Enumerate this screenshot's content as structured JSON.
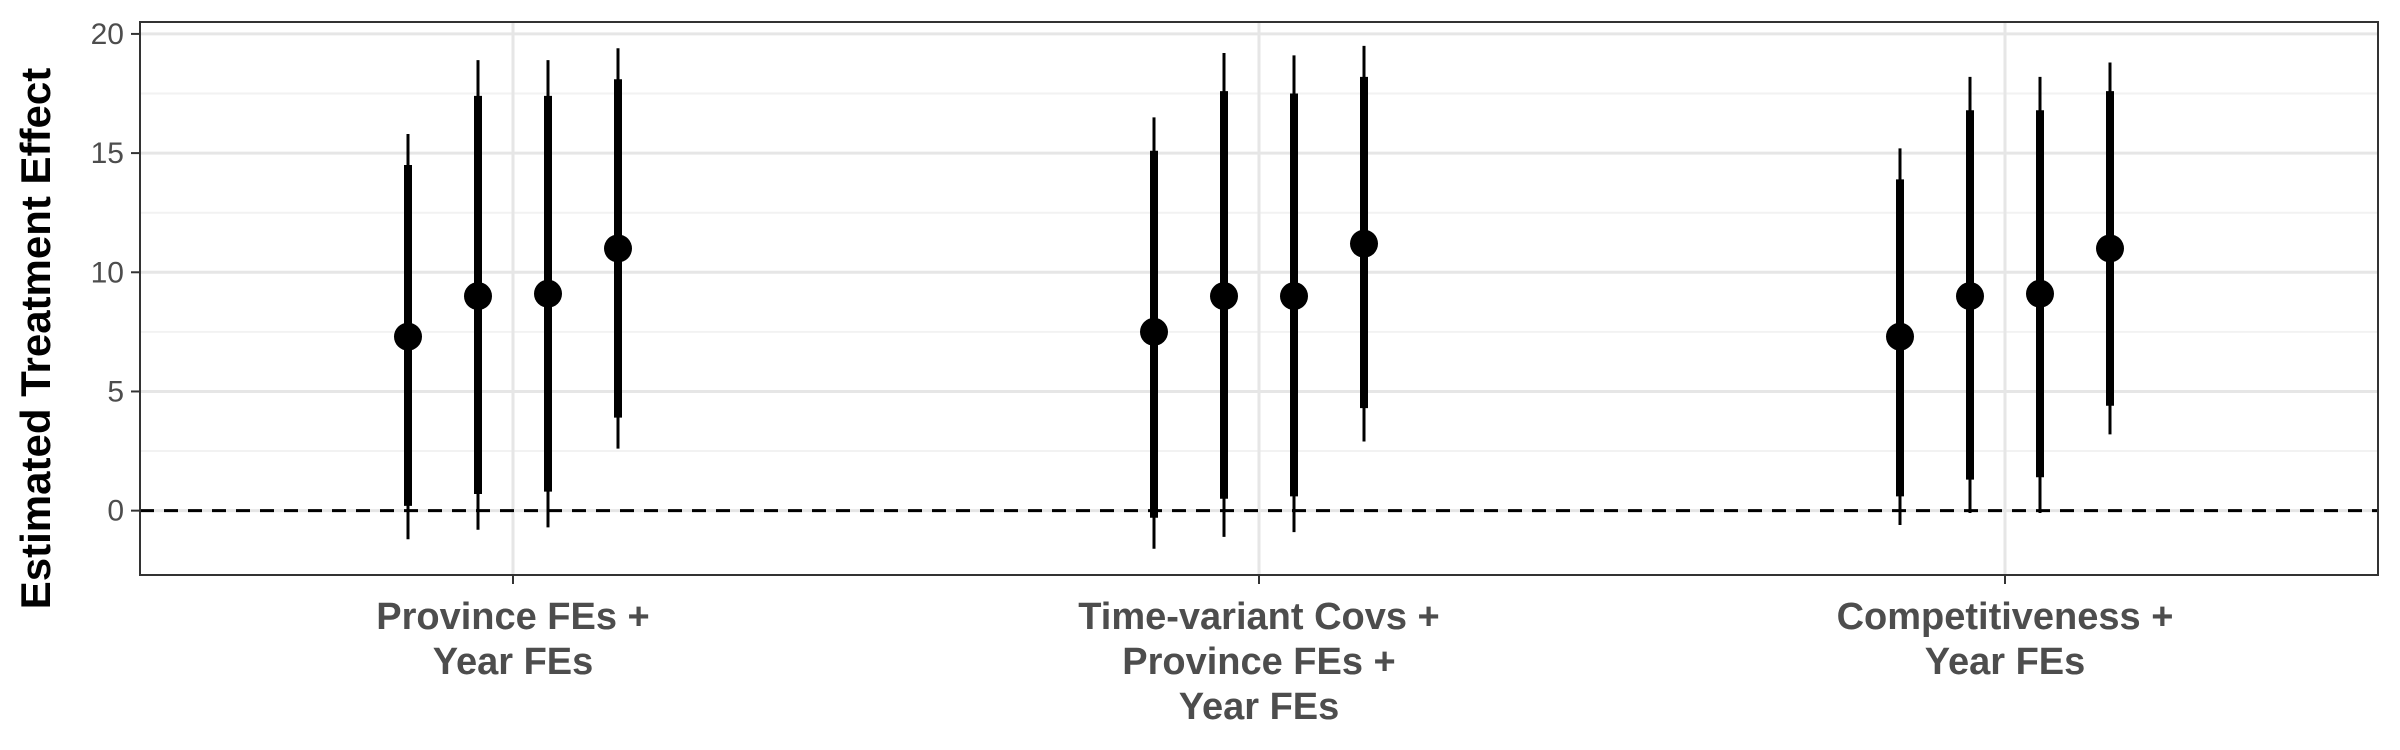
{
  "chart_data": {
    "type": "scatter",
    "subtype": "coefficient-plot-with-error-bars",
    "title": "",
    "xlabel": "",
    "ylabel": "Estimated Treatment Effect",
    "ylim": [
      -2.7,
      20.5
    ],
    "yticks": [
      0,
      5,
      10,
      15,
      20
    ],
    "grid": true,
    "legend": "none",
    "reference_line": {
      "y": 0,
      "style": "dashed"
    },
    "categories": [
      {
        "lines": [
          "Province FEs +",
          "Year FEs"
        ]
      },
      {
        "lines": [
          "Time-variant Covs +",
          "Province FEs +",
          "Year FEs"
        ]
      },
      {
        "lines": [
          "Competitiveness +",
          "Year FEs"
        ]
      }
    ],
    "estimates": [
      [
        {
          "estimate": 7.3,
          "ci90": [
            0.2,
            14.5
          ],
          "ci95": [
            -1.2,
            15.8
          ]
        },
        {
          "estimate": 9.0,
          "ci90": [
            0.7,
            17.4
          ],
          "ci95": [
            -0.8,
            18.9
          ]
        },
        {
          "estimate": 9.1,
          "ci90": [
            0.8,
            17.4
          ],
          "ci95": [
            -0.7,
            18.9
          ]
        },
        {
          "estimate": 11.0,
          "ci90": [
            3.9,
            18.1
          ],
          "ci95": [
            2.6,
            19.4
          ]
        }
      ],
      [
        {
          "estimate": 7.5,
          "ci90": [
            -0.3,
            15.1
          ],
          "ci95": [
            -1.6,
            16.5
          ]
        },
        {
          "estimate": 9.0,
          "ci90": [
            0.5,
            17.6
          ],
          "ci95": [
            -1.1,
            19.2
          ]
        },
        {
          "estimate": 9.0,
          "ci90": [
            0.6,
            17.5
          ],
          "ci95": [
            -0.9,
            19.1
          ]
        },
        {
          "estimate": 11.2,
          "ci90": [
            4.3,
            18.2
          ],
          "ci95": [
            2.9,
            19.5
          ]
        }
      ],
      [
        {
          "estimate": 7.3,
          "ci90": [
            0.6,
            13.9
          ],
          "ci95": [
            -0.6,
            15.2
          ]
        },
        {
          "estimate": 9.0,
          "ci90": [
            1.3,
            16.8
          ],
          "ci95": [
            -0.1,
            18.2
          ]
        },
        {
          "estimate": 9.1,
          "ci90": [
            1.4,
            16.8
          ],
          "ci95": [
            -0.1,
            18.2
          ]
        },
        {
          "estimate": 11.0,
          "ci90": [
            4.4,
            17.6
          ],
          "ci95": [
            3.2,
            18.8
          ]
        }
      ]
    ],
    "colors": {
      "point": "#000000",
      "ci90": "#000000",
      "ci95": "#000000",
      "grid_major": "#e6e6e6",
      "grid_minor": "#f2f2f2",
      "panel_border": "#333333",
      "tick_text": "#4d4d4d"
    }
  }
}
